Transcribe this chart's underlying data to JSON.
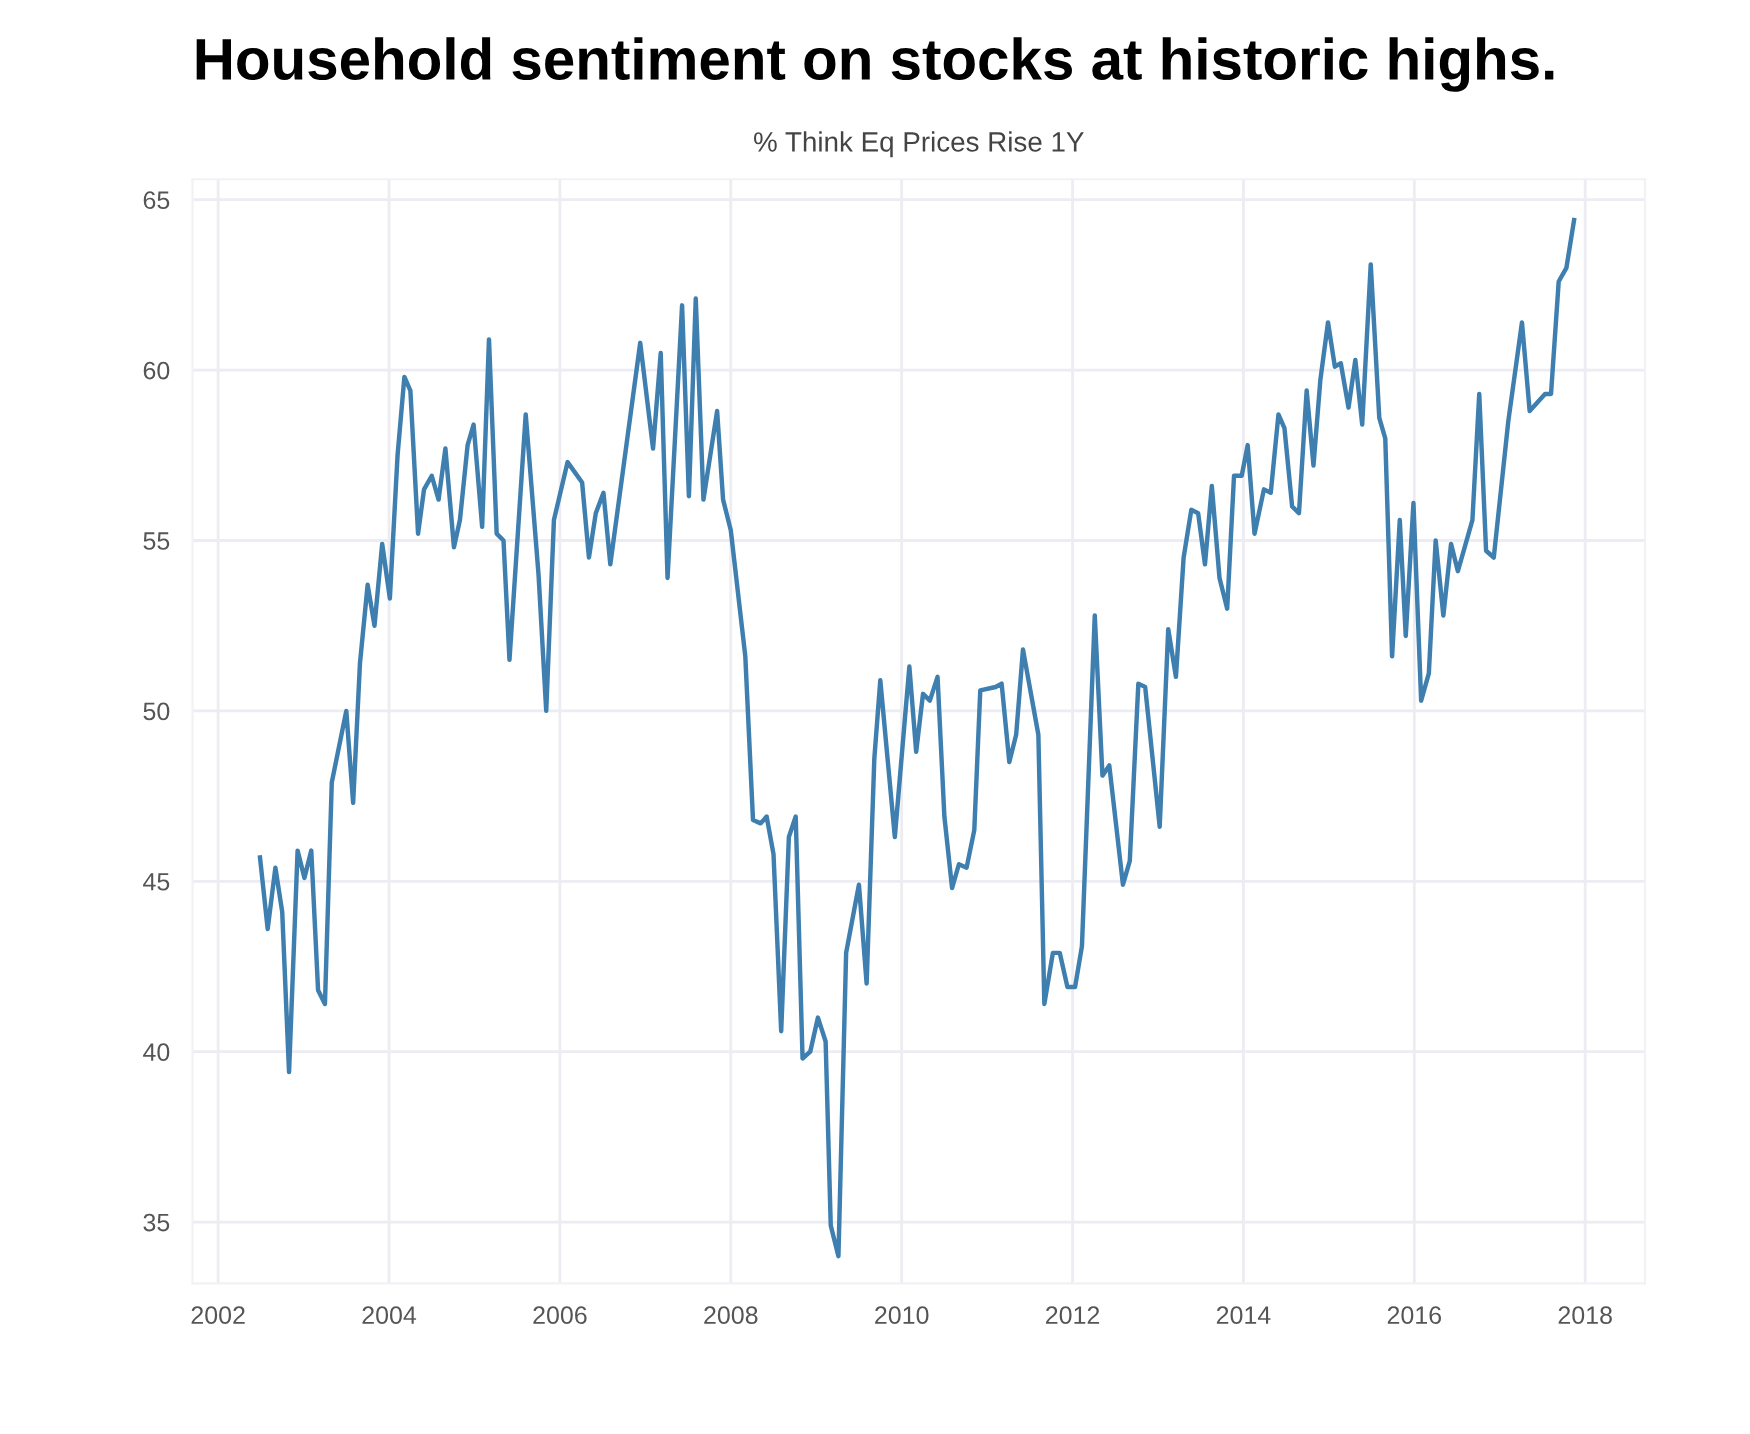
{
  "chart_data": {
    "type": "line",
    "title": "Household sentiment on stocks at historic highs.",
    "subtitle": "% Think Eq Prices Rise 1Y",
    "x": [
      2002.49,
      2002.58,
      2002.67,
      2002.75,
      2002.83,
      2002.93,
      2003.01,
      2003.09,
      2003.17,
      2003.25,
      2003.33,
      2003.5,
      2003.58,
      2003.66,
      2003.75,
      2003.83,
      2003.92,
      2004.01,
      2004.1,
      2004.18,
      2004.25,
      2004.34,
      2004.41,
      2004.5,
      2004.58,
      2004.66,
      2004.76,
      2004.83,
      2004.92,
      2004.99,
      2005.09,
      2005.17,
      2005.26,
      2005.34,
      2005.41,
      2005.6,
      2005.75,
      2005.84,
      2005.93,
      2006.09,
      2006.26,
      2006.34,
      2006.42,
      2006.51,
      2006.59,
      2006.94,
      2007.09,
      2007.18,
      2007.26,
      2007.43,
      2007.51,
      2007.59,
      2007.68,
      2007.84,
      2007.91,
      2008.0,
      2008.17,
      2008.26,
      2008.35,
      2008.42,
      2008.5,
      2008.59,
      2008.68,
      2008.76,
      2008.84,
      2008.93,
      2009.02,
      2009.11,
      2009.17,
      2009.26,
      2009.35,
      2009.5,
      2009.59,
      2009.68,
      2009.75,
      2009.92,
      2010.09,
      2010.17,
      2010.25,
      2010.33,
      2010.42,
      2010.5,
      2010.59,
      2010.67,
      2010.76,
      2010.85,
      2010.92,
      2011.1,
      2011.17,
      2011.26,
      2011.34,
      2011.42,
      2011.6,
      2011.67,
      2011.77,
      2011.85,
      2011.94,
      2012.03,
      2012.11,
      2012.26,
      2012.35,
      2012.43,
      2012.59,
      2012.67,
      2012.77,
      2012.85,
      2013.02,
      2013.12,
      2013.21,
      2013.3,
      2013.39,
      2013.47,
      2013.55,
      2013.63,
      2013.72,
      2013.81,
      2013.89,
      2013.98,
      2014.05,
      2014.13,
      2014.24,
      2014.32,
      2014.41,
      2014.48,
      2014.57,
      2014.65,
      2014.74,
      2014.82,
      2014.9,
      2014.99,
      2015.07,
      2015.14,
      2015.23,
      2015.31,
      2015.39,
      2015.49,
      2015.59,
      2015.66,
      2015.74,
      2015.83,
      2015.9,
      2015.99,
      2016.08,
      2016.17,
      2016.25,
      2016.34,
      2016.43,
      2016.51,
      2016.68,
      2016.76,
      2016.84,
      2016.93,
      2017.1,
      2017.26,
      2017.35,
      2017.53,
      2017.6,
      2017.69,
      2017.78,
      2017.87
    ],
    "series": [
      {
        "color": "#3f7fb0",
        "values": [
          45.7,
          43.6,
          45.4,
          44.1,
          39.4,
          45.9,
          45.1,
          45.9,
          41.8,
          41.4,
          47.9,
          50.0,
          47.3,
          51.4,
          53.7,
          52.5,
          54.9,
          53.3,
          57.5,
          59.8,
          59.4,
          55.2,
          56.5,
          56.9,
          56.2,
          57.7,
          54.8,
          55.6,
          57.8,
          58.4,
          55.4,
          60.9,
          55.2,
          55.0,
          51.5,
          58.7,
          54.0,
          50.0,
          55.6,
          57.3,
          56.7,
          54.5,
          55.8,
          56.4,
          54.3,
          60.8,
          57.7,
          60.5,
          53.9,
          61.9,
          56.3,
          62.1,
          56.2,
          58.8,
          56.2,
          55.3,
          51.6,
          46.8,
          46.7,
          46.9,
          45.8,
          40.6,
          46.3,
          46.9,
          39.8,
          40.0,
          41.0,
          40.3,
          34.9,
          34.0,
          42.9,
          44.9,
          42.0,
          48.6,
          50.9,
          46.3,
          51.3,
          48.8,
          50.5,
          50.3,
          51.0,
          46.9,
          44.8,
          45.5,
          45.4,
          46.5,
          50.6,
          50.7,
          50.8,
          48.5,
          49.3,
          51.8,
          49.3,
          41.4,
          42.9,
          42.9,
          41.9,
          41.9,
          43.1,
          52.8,
          48.1,
          48.4,
          44.9,
          45.6,
          50.8,
          50.7,
          46.6,
          52.4,
          51.0,
          54.5,
          55.9,
          55.8,
          54.3,
          56.6,
          53.9,
          53.0,
          56.9,
          56.9,
          57.8,
          55.2,
          56.5,
          56.4,
          58.7,
          58.3,
          56.0,
          55.8,
          59.4,
          57.2,
          59.7,
          61.4,
          60.1,
          60.2,
          58.9,
          60.3,
          58.4,
          63.1,
          58.6,
          58.0,
          51.6,
          55.6,
          52.2,
          56.1,
          50.3,
          51.1,
          55.0,
          52.8,
          54.9,
          54.1,
          55.6,
          59.3,
          54.7,
          54.5,
          58.5,
          61.4,
          58.8,
          59.3,
          59.3,
          62.6,
          63.0,
          64.4
        ]
      }
    ],
    "xlim": [
      2001.7,
      2018.7
    ],
    "ylim": [
      33.2,
      65.6
    ],
    "xticks": [
      2002,
      2004,
      2006,
      2008,
      2010,
      2012,
      2014,
      2016,
      2018
    ],
    "yticks": [
      35,
      40,
      45,
      50,
      55,
      60,
      65
    ],
    "grid": true,
    "line_style": "solid",
    "marker": "none"
  }
}
